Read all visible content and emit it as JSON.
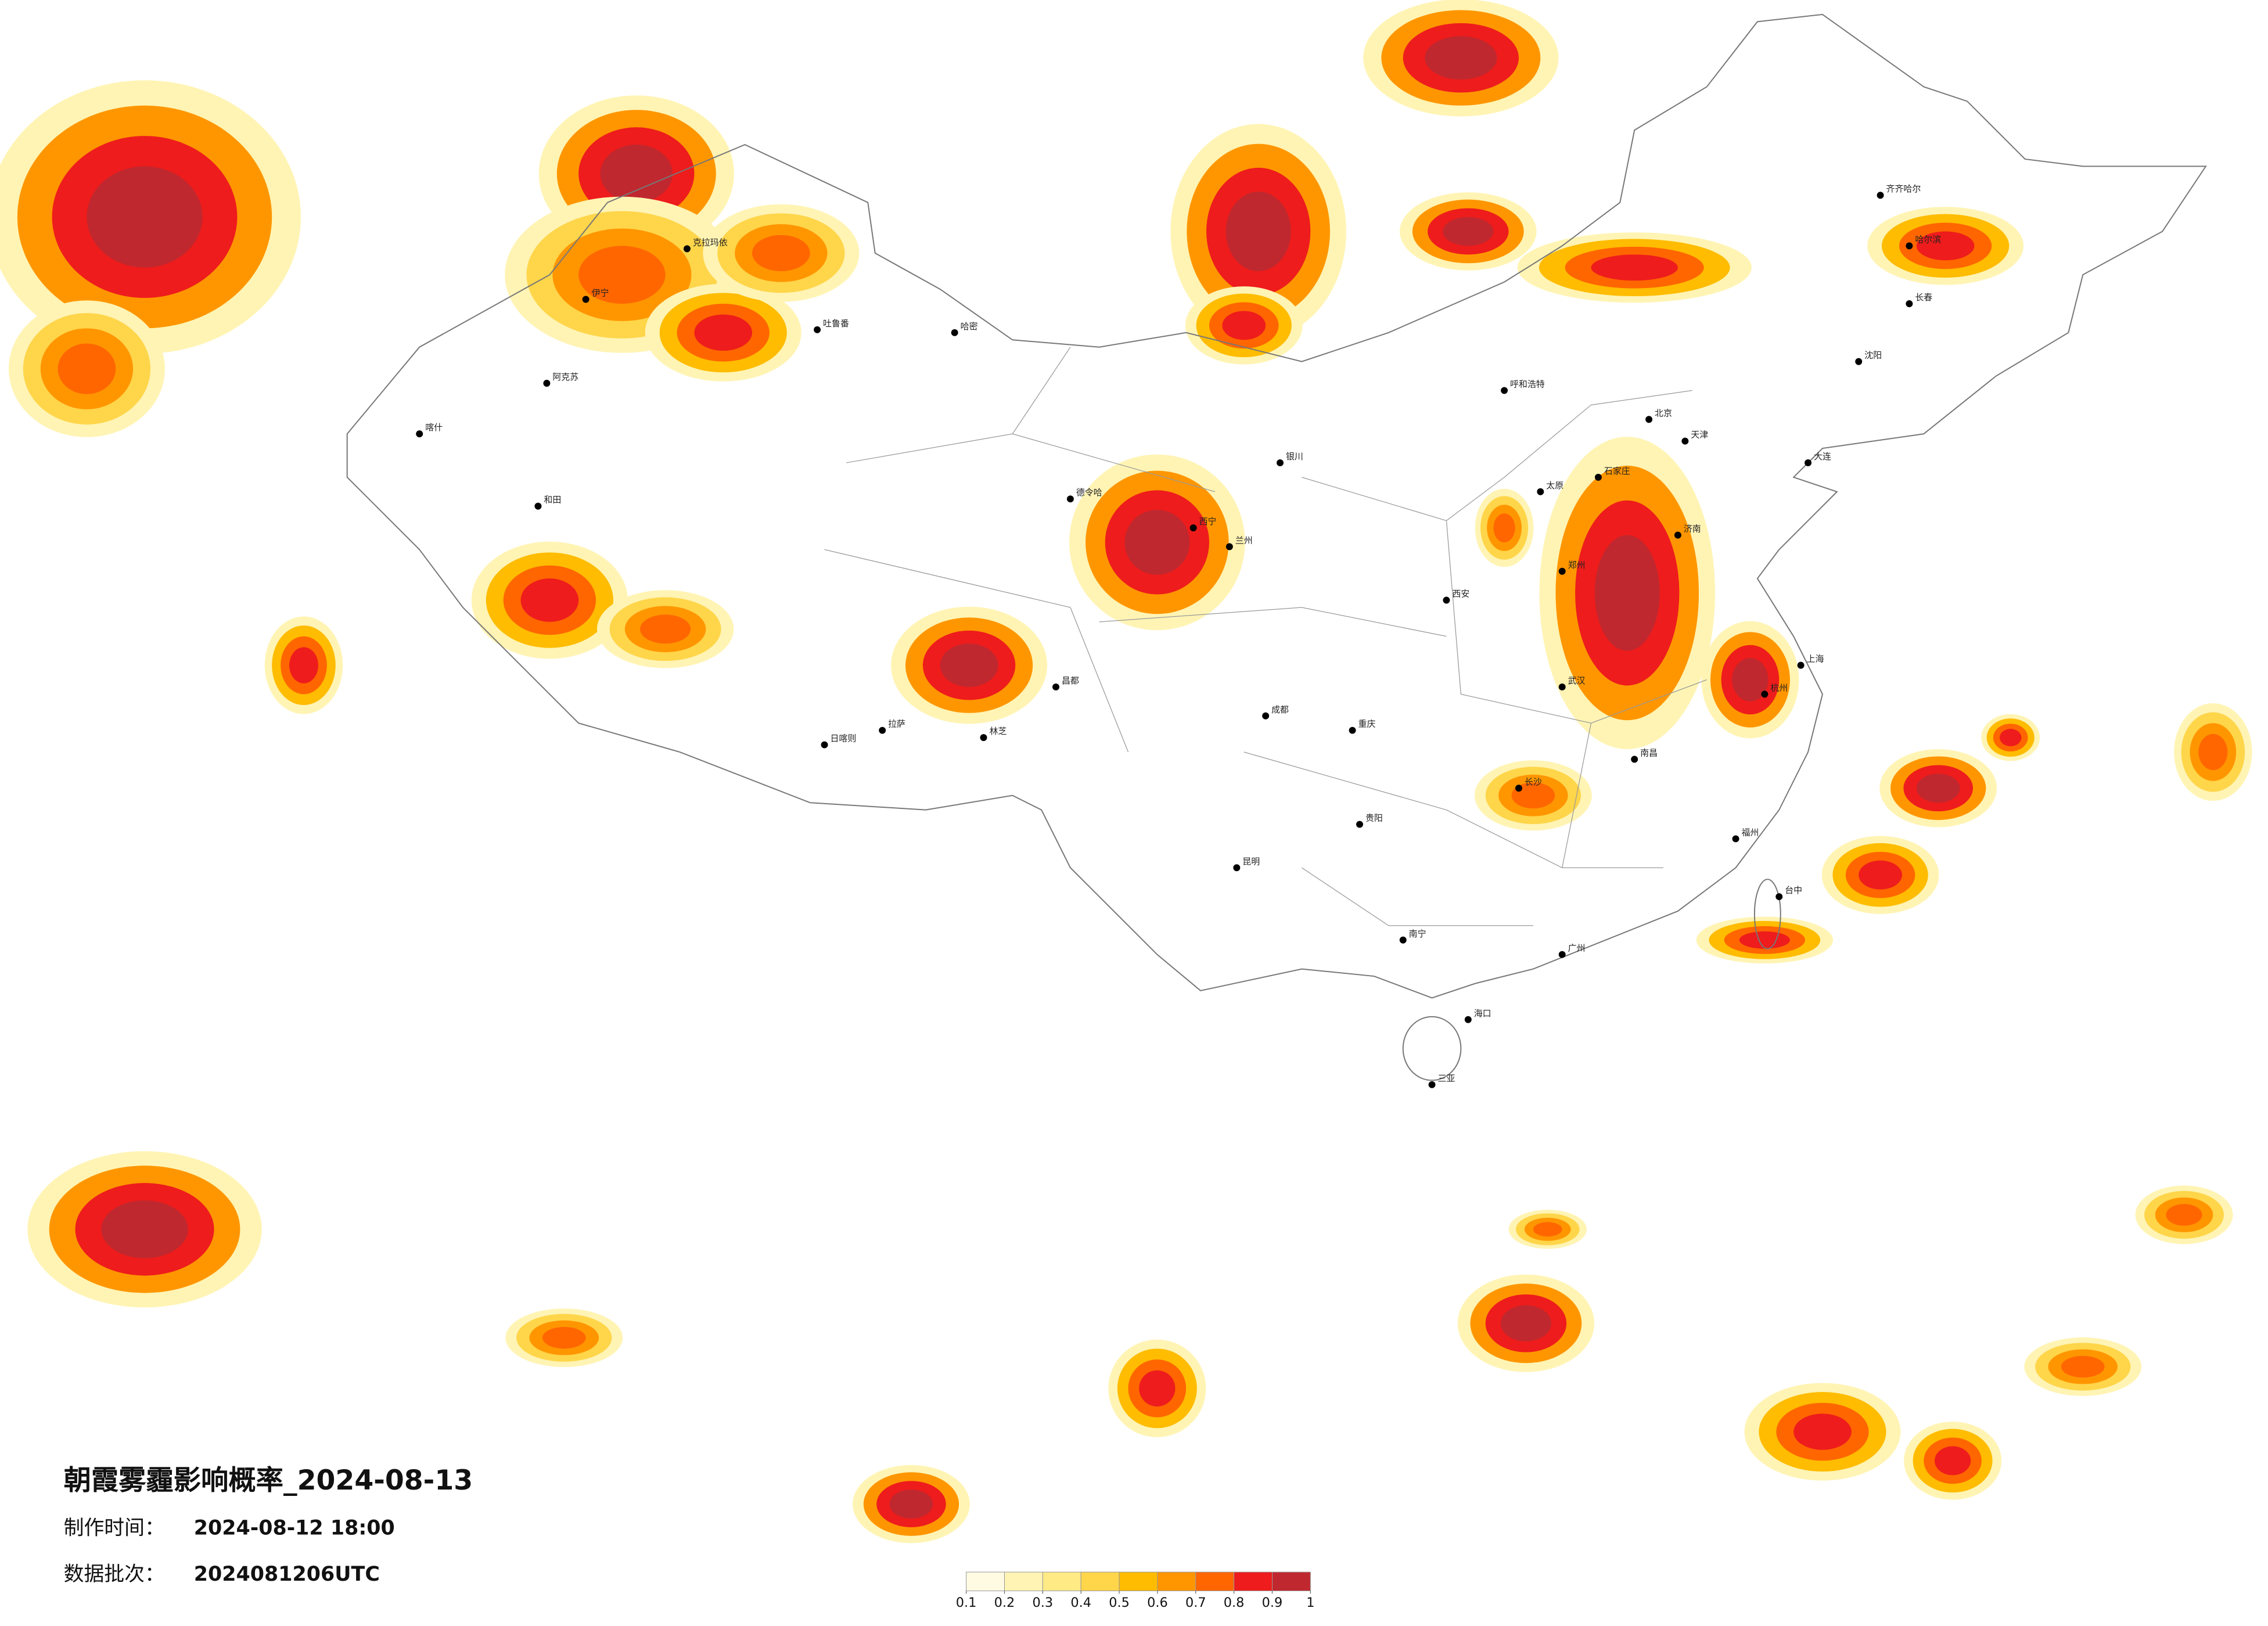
{
  "header": {
    "title": "朝霞雾霾影响概率_2024-08-13",
    "made_label": "制作时间：",
    "made_value": "2024-08-12 18:00",
    "batch_label": "数据批次：",
    "batch_value": "2024081206UTC"
  },
  "legend": {
    "ticks": [
      0.1,
      0.2,
      0.3,
      0.4,
      0.5,
      0.6,
      0.7,
      0.8,
      0.9,
      1
    ],
    "colors": [
      "#fffbe3",
      "#fff4b4",
      "#ffea86",
      "#ffd54a",
      "#ffbc00",
      "#ff9600",
      "#ff6600",
      "#ee1c1c",
      "#c0282f"
    ]
  },
  "cities": [
    "阿克苏",
    "和田",
    "喀什",
    "哈密",
    "吐鲁番",
    "伊宁",
    "克拉玛依",
    "德令哈",
    "日喀则",
    "拉萨",
    "林芝",
    "昌都",
    "西宁",
    "兰州",
    "银川",
    "呼和浩特",
    "北京",
    "天津",
    "石家庄",
    "太原",
    "济南",
    "郑州",
    "西安",
    "成都",
    "重庆",
    "武汉",
    "长沙",
    "南昌",
    "杭州",
    "上海",
    "福州",
    "广州",
    "南宁",
    "昆明",
    "贵阳",
    "海口",
    "三亚",
    "哈尔滨",
    "长春",
    "沈阳",
    "大连",
    "齐齐哈尔",
    "台中"
  ]
}
